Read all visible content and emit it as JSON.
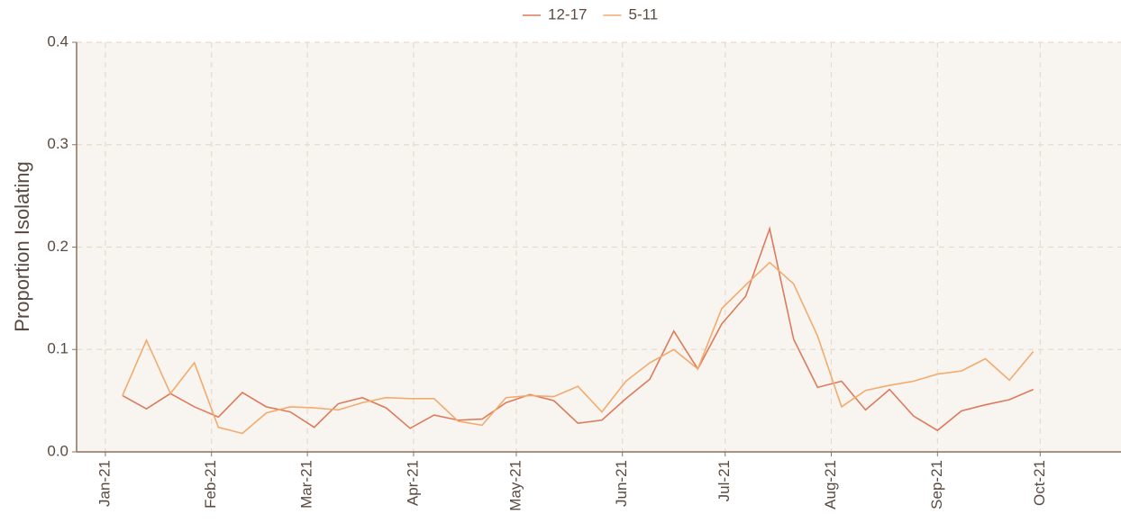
{
  "chart_data": {
    "type": "line",
    "y_label": "Proportion Isolating",
    "x": [
      5,
      12,
      19,
      26,
      33,
      40,
      47,
      54,
      61,
      68,
      75,
      82,
      89,
      96,
      103,
      110,
      117,
      124,
      131,
      138,
      145,
      152,
      159,
      166,
      173,
      180,
      187,
      194,
      201,
      208,
      215,
      222,
      229,
      236,
      243,
      250,
      257,
      264,
      271
    ],
    "series": [
      {
        "name": "12-17",
        "color": "#de7a5c",
        "values": [
          0.055,
          0.042,
          0.057,
          0.044,
          0.034,
          0.058,
          0.044,
          0.039,
          0.024,
          0.047,
          0.053,
          0.043,
          0.023,
          0.036,
          0.031,
          0.032,
          0.048,
          0.056,
          0.05,
          0.028,
          0.031,
          0.052,
          0.071,
          0.118,
          0.081,
          0.125,
          0.152,
          0.218,
          0.11,
          0.063,
          0.069,
          0.041,
          0.061,
          0.035,
          0.021,
          0.04,
          0.046,
          0.051,
          0.061
        ]
      },
      {
        "name": "5-11",
        "color": "#f2ab6d",
        "values": [
          0.055,
          0.109,
          0.057,
          0.087,
          0.024,
          0.018,
          0.038,
          0.044,
          0.043,
          0.041,
          0.048,
          0.053,
          0.052,
          0.052,
          0.03,
          0.026,
          0.053,
          0.055,
          0.054,
          0.064,
          0.039,
          0.069,
          0.087,
          0.1,
          0.081,
          0.14,
          0.163,
          0.185,
          0.164,
          0.113,
          0.044,
          0.06,
          0.065,
          0.069,
          0.076,
          0.079,
          0.091,
          0.07,
          0.098
        ]
      }
    ],
    "xlim": [
      -8.4,
      296.6
    ],
    "xticks": [
      {
        "value": 0,
        "label": "Jan-21"
      },
      {
        "value": 31,
        "label": "Feb-21"
      },
      {
        "value": 59,
        "label": "Mar-21"
      },
      {
        "value": 90,
        "label": "Apr-21"
      },
      {
        "value": 120,
        "label": "May-21"
      },
      {
        "value": 151,
        "label": "Jun-21"
      },
      {
        "value": 181,
        "label": "Jul-21"
      },
      {
        "value": 212,
        "label": "Aug-21"
      },
      {
        "value": 243,
        "label": "Sep-21"
      },
      {
        "value": 273,
        "label": "Oct-21"
      }
    ],
    "ylim": [
      0,
      0.4
    ],
    "yticks": [
      {
        "value": 0,
        "label": "0.0"
      },
      0.1,
      0.2,
      0.3,
      {
        "value": 0.4,
        "label": "0.4"
      }
    ],
    "grid": true,
    "legend": "top"
  }
}
